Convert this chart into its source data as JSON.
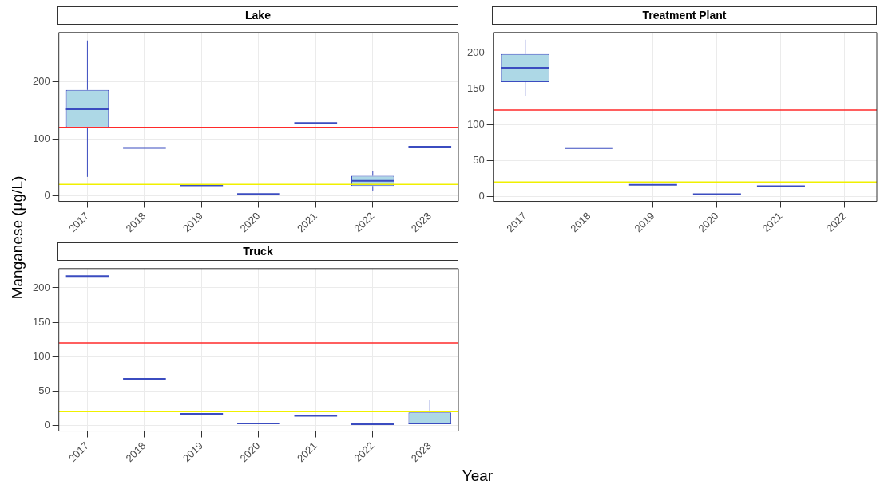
{
  "chart_data": [
    {
      "type": "box",
      "title": "Lake",
      "ylabel": "Manganese (µg/L)",
      "categories": [
        "2017",
        "2018",
        "2019",
        "2020",
        "2021",
        "2022",
        "2023"
      ],
      "series": [
        {
          "color": "#3b4cc0",
          "boxes": [
            {
              "low": 33,
              "q1": 120,
              "median": 152,
              "q3": 186,
              "high": 273
            },
            {
              "low": 84,
              "q1": 84,
              "median": 84,
              "q3": 84,
              "high": 84
            },
            {
              "low": 18,
              "q1": 18,
              "median": 18,
              "q3": 18,
              "high": 18
            },
            {
              "low": 3,
              "q1": 3,
              "median": 3,
              "q3": 3,
              "high": 3
            },
            {
              "low": 128,
              "q1": 128,
              "median": 128,
              "q3": 128,
              "high": 128
            },
            {
              "low": 9,
              "q1": 17,
              "median": 26,
              "q3": 35,
              "high": 43
            },
            {
              "low": 86,
              "q1": 86,
              "median": 86,
              "q3": 86,
              "high": 86
            }
          ]
        }
      ],
      "ylim": [
        -10,
        287
      ],
      "yticks": [
        0,
        100,
        200
      ],
      "grid": true,
      "ref_lines": [
        {
          "axis": "y",
          "value": 120,
          "color": "#ff2a2a"
        },
        {
          "axis": "y",
          "value": 20,
          "color": "#f0f000"
        }
      ]
    },
    {
      "type": "box",
      "title": "Treatment Plant",
      "categories": [
        "2017",
        "2018",
        "2019",
        "2020",
        "2021",
        "2022"
      ],
      "series": [
        {
          "color": "#3b4cc0",
          "boxes": [
            {
              "low": 139,
              "q1": 159,
              "median": 179,
              "q3": 198,
              "high": 218
            },
            {
              "low": 67,
              "q1": 67,
              "median": 67,
              "q3": 67,
              "high": 67
            },
            {
              "low": 16,
              "q1": 16,
              "median": 16,
              "q3": 16,
              "high": 16
            },
            {
              "low": 3,
              "q1": 3,
              "median": 3,
              "q3": 3,
              "high": 3
            },
            {
              "low": 14,
              "q1": 14,
              "median": 14,
              "q3": 14,
              "high": 14
            },
            null
          ]
        }
      ],
      "ylim": [
        -7,
        228
      ],
      "yticks": [
        0,
        50,
        100,
        150,
        200
      ],
      "grid": true,
      "ref_lines": [
        {
          "axis": "y",
          "value": 120,
          "color": "#ff2a2a"
        },
        {
          "axis": "y",
          "value": 20,
          "color": "#f0f000"
        }
      ]
    },
    {
      "type": "box",
      "title": "Truck",
      "xlabel": "Year",
      "categories": [
        "2017",
        "2018",
        "2019",
        "2020",
        "2021",
        "2022",
        "2023"
      ],
      "series": [
        {
          "color": "#3b4cc0",
          "boxes": [
            {
              "low": 217,
              "q1": 217,
              "median": 217,
              "q3": 217,
              "high": 217
            },
            {
              "low": 68,
              "q1": 68,
              "median": 68,
              "q3": 68,
              "high": 68
            },
            {
              "low": 17,
              "q1": 17,
              "median": 17,
              "q3": 17,
              "high": 17
            },
            {
              "low": 3,
              "q1": 3,
              "median": 3,
              "q3": 3,
              "high": 3
            },
            {
              "low": 14,
              "q1": 14,
              "median": 14,
              "q3": 14,
              "high": 14
            },
            {
              "low": 2,
              "q1": 2,
              "median": 2,
              "q3": 2,
              "high": 2
            },
            {
              "low": 3,
              "q1": 3,
              "median": 3,
              "q3": 19,
              "high": 37
            }
          ]
        }
      ],
      "ylim": [
        -8,
        228
      ],
      "yticks": [
        0,
        50,
        100,
        150,
        200
      ],
      "grid": true,
      "ref_lines": [
        {
          "axis": "y",
          "value": 120,
          "color": "#ff2a2a"
        },
        {
          "axis": "y",
          "value": 20,
          "color": "#f0f000"
        }
      ]
    }
  ]
}
